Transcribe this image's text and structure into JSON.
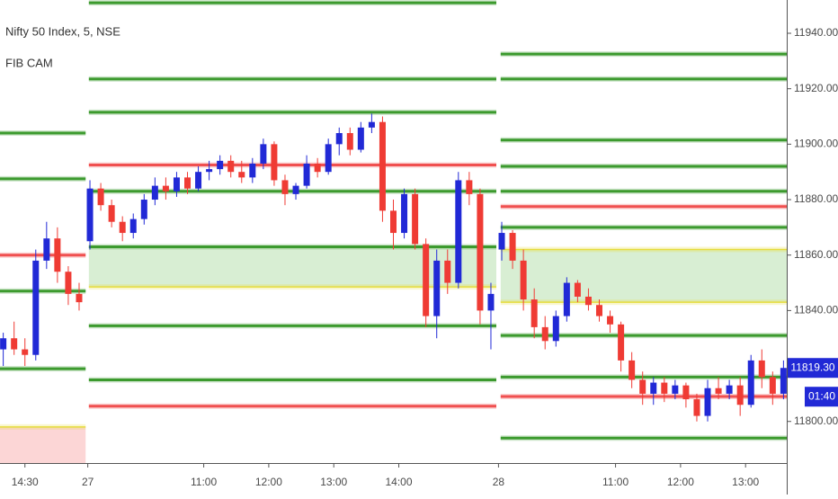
{
  "chart_data": {
    "type": "candlestick",
    "title": "Nifty 50 Index, 5, NSE",
    "indicator": "FIB CAM",
    "up_color": "#2129d6",
    "down_color": "#ef3b34",
    "ylim": [
      11785,
      11952
    ],
    "yticks": [
      {
        "value": 11800,
        "label": "11800.00"
      },
      {
        "value": 11820,
        "label": "11820.00"
      },
      {
        "value": 11840,
        "label": "11840.00"
      },
      {
        "value": 11860,
        "label": "11860.00"
      },
      {
        "value": 11880,
        "label": "11880.00"
      },
      {
        "value": 11900,
        "label": "11900.00"
      },
      {
        "value": 11920,
        "label": "11920.00"
      },
      {
        "value": 11940,
        "label": "11940.00"
      }
    ],
    "xlim": [
      -0.3,
      72.3
    ],
    "xticks": [
      {
        "value": 2,
        "label": "14:30"
      },
      {
        "value": 7.8,
        "label": "27"
      },
      {
        "value": 18.5,
        "label": "11:00"
      },
      {
        "value": 24.5,
        "label": "12:00"
      },
      {
        "value": 30.5,
        "label": "13:00"
      },
      {
        "value": 36.5,
        "label": "14:00"
      },
      {
        "value": 45.7,
        "label": "28"
      },
      {
        "value": 56.5,
        "label": "11:00"
      },
      {
        "value": 62.5,
        "label": "12:00"
      },
      {
        "value": 68.5,
        "label": "13:00"
      }
    ],
    "open": [
      11826,
      11830,
      11826,
      11824,
      11858,
      11866,
      11854,
      11846,
      11865,
      11884,
      11878,
      11872,
      11868,
      11873,
      11880,
      11885,
      11883,
      11888,
      11884,
      11890,
      11891,
      11894,
      11890,
      11888,
      11893,
      11900,
      11887,
      11882,
      11885,
      11893,
      11890,
      11900,
      11904,
      11898,
      11906,
      11908,
      11876,
      11868,
      11882,
      11864,
      11838,
      11858,
      11850,
      11887,
      11882,
      11840,
      11862,
      11868,
      11858,
      11844,
      11834,
      11829,
      11838,
      11850,
      11845,
      11842,
      11838,
      11835,
      11822,
      11815,
      11810,
      11814,
      11810,
      11813,
      11808,
      11802,
      11812,
      11810,
      11813,
      11806,
      11822,
      11816,
      11810
    ],
    "high": [
      11832,
      11836,
      11830,
      11862,
      11872,
      11870,
      11856,
      11850,
      11887,
      11886,
      11880,
      11874,
      11875,
      11882,
      11888,
      11888,
      11890,
      11890,
      11892,
      11894,
      11896,
      11896,
      11894,
      11895,
      11902,
      11901,
      11889,
      11886,
      11896,
      11895,
      11902,
      11906,
      11906,
      11908,
      11911,
      11910,
      11880,
      11884,
      11884,
      11866,
      11862,
      11862,
      11890,
      11890,
      11884,
      11850,
      11872,
      11869,
      11862,
      11848,
      11838,
      11840,
      11852,
      11851,
      11848,
      11844,
      11840,
      11836,
      11825,
      11818,
      11816,
      11816,
      11815,
      11814,
      11810,
      11815,
      11816,
      11815,
      11816,
      11824,
      11826,
      11818,
      11822
    ],
    "low": [
      11820,
      11824,
      11820,
      11822,
      11855,
      11850,
      11842,
      11840,
      11862,
      11876,
      11870,
      11865,
      11866,
      11871,
      11878,
      11880,
      11881,
      11882,
      11883,
      11887,
      11889,
      11888,
      11886,
      11886,
      11891,
      11885,
      11878,
      11880,
      11884,
      11888,
      11889,
      11896,
      11896,
      11897,
      11904,
      11872,
      11862,
      11866,
      11862,
      11834,
      11830,
      11846,
      11848,
      11878,
      11835,
      11826,
      11858,
      11855,
      11840,
      11830,
      11826,
      11827,
      11836,
      11843,
      11840,
      11836,
      11832,
      11818,
      11812,
      11806,
      11806,
      11807,
      11808,
      11805,
      11800,
      11800,
      11808,
      11808,
      11802,
      11805,
      11812,
      11806,
      11808
    ],
    "close": [
      11830,
      11826,
      11824,
      11858,
      11866,
      11854,
      11846,
      11843,
      11884,
      11878,
      11872,
      11868,
      11873,
      11880,
      11885,
      11883,
      11888,
      11884,
      11890,
      11891,
      11894,
      11890,
      11888,
      11893,
      11900,
      11887,
      11882,
      11885,
      11893,
      11890,
      11900,
      11904,
      11898,
      11906,
      11908,
      11876,
      11868,
      11882,
      11864,
      11838,
      11858,
      11850,
      11887,
      11882,
      11840,
      11846,
      11868,
      11858,
      11844,
      11834,
      11829,
      11838,
      11850,
      11845,
      11842,
      11838,
      11835,
      11822,
      11815,
      11810,
      11814,
      11810,
      11813,
      11808,
      11802,
      11812,
      11810,
      11813,
      11806,
      11822,
      11816,
      11810,
      11819.3
    ],
    "levels": [
      {
        "start": -0.3,
        "end": 7.6,
        "value": 11904,
        "color": "#3c9a2e"
      },
      {
        "start": -0.3,
        "end": 7.6,
        "value": 11887.5,
        "color": "#3c9a2e"
      },
      {
        "start": -0.3,
        "end": 7.6,
        "value": 11860,
        "color": "#f05050"
      },
      {
        "start": -0.3,
        "end": 7.6,
        "value": 11847,
        "color": "#3c9a2e"
      },
      {
        "start": -0.3,
        "end": 7.6,
        "value": 11819,
        "color": "#3c9a2e"
      },
      {
        "start": -0.3,
        "end": 7.6,
        "value": 11798,
        "color": "#e6dc3c"
      },
      {
        "start": 7.9,
        "end": 45.5,
        "value": 11951,
        "color": "#3c9a2e"
      },
      {
        "start": 7.9,
        "end": 45.5,
        "value": 11923.5,
        "color": "#3c9a2e"
      },
      {
        "start": 7.9,
        "end": 45.5,
        "value": 11911.5,
        "color": "#3c9a2e"
      },
      {
        "start": 7.9,
        "end": 45.5,
        "value": 11892.5,
        "color": "#f05050"
      },
      {
        "start": 7.9,
        "end": 45.5,
        "value": 11883,
        "color": "#3c9a2e"
      },
      {
        "start": 7.9,
        "end": 45.5,
        "value": 11863,
        "color": "#3c9a2e"
      },
      {
        "start": 7.9,
        "end": 45.5,
        "value": 11848.5,
        "color": "#e6dc3c"
      },
      {
        "start": 7.9,
        "end": 45.5,
        "value": 11834.5,
        "color": "#3c9a2e"
      },
      {
        "start": 7.9,
        "end": 45.5,
        "value": 11815,
        "color": "#3c9a2e"
      },
      {
        "start": 7.9,
        "end": 45.5,
        "value": 11805.5,
        "color": "#f05050"
      },
      {
        "start": 45.9,
        "end": 72.3,
        "value": 11932.5,
        "color": "#3c9a2e"
      },
      {
        "start": 45.9,
        "end": 72.3,
        "value": 11923.5,
        "color": "#3c9a2e"
      },
      {
        "start": 45.9,
        "end": 72.3,
        "value": 11901.5,
        "color": "#3c9a2e"
      },
      {
        "start": 45.9,
        "end": 72.3,
        "value": 11892,
        "color": "#3c9a2e"
      },
      {
        "start": 45.9,
        "end": 72.3,
        "value": 11883,
        "color": "#3c9a2e"
      },
      {
        "start": 45.9,
        "end": 72.3,
        "value": 11877.5,
        "color": "#f05050"
      },
      {
        "start": 45.9,
        "end": 72.3,
        "value": 11870,
        "color": "#3c9a2e"
      },
      {
        "start": 45.9,
        "end": 72.3,
        "value": 11862,
        "color": "#e6dc3c"
      },
      {
        "start": 45.9,
        "end": 72.3,
        "value": 11843,
        "color": "#e6dc3c"
      },
      {
        "start": 45.9,
        "end": 72.3,
        "value": 11831,
        "color": "#3c9a2e"
      },
      {
        "start": 45.9,
        "end": 72.3,
        "value": 11816,
        "color": "#3c9a2e"
      },
      {
        "start": 45.9,
        "end": 72.3,
        "value": 11809,
        "color": "#f05050"
      },
      {
        "start": 45.9,
        "end": 72.3,
        "value": 11794,
        "color": "#3c9a2e"
      }
    ],
    "zones": [
      {
        "start": -0.3,
        "end": 7.6,
        "from": 11785,
        "to": 11798,
        "color": "#fcd6d6"
      },
      {
        "start": 7.9,
        "end": 45.5,
        "from": 11848.5,
        "to": 11863,
        "color": "#d8eed3"
      },
      {
        "start": 45.9,
        "end": 72.3,
        "from": 11843,
        "to": 11862,
        "color": "#d8eed3"
      }
    ],
    "last_price": {
      "value": 11819.3,
      "label": "11819.30"
    },
    "countdown": "01:40"
  }
}
